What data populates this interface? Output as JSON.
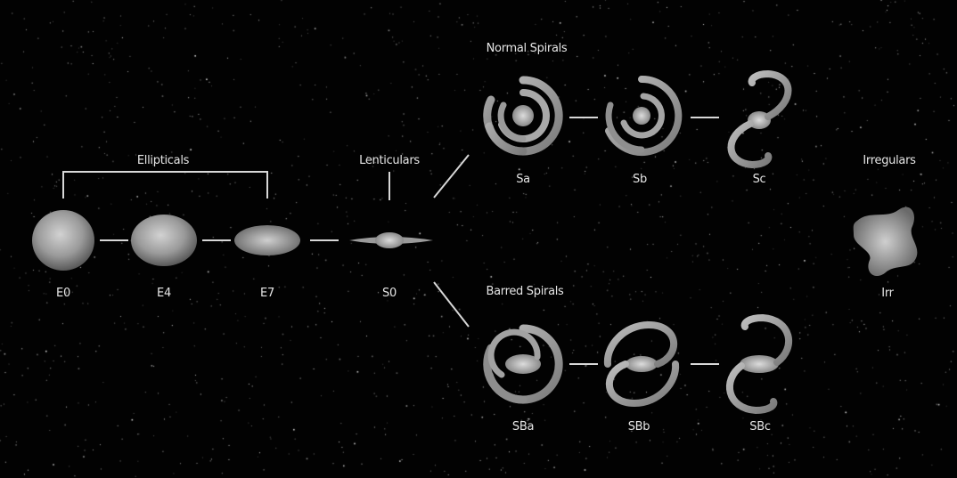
{
  "headings": {
    "ellipticals": "Ellipticals",
    "lenticulars": "Lenticulars",
    "normal_spirals": "Normal Spirals",
    "barred_spirals": "Barred Spirals",
    "irregulars": "Irregulars"
  },
  "galaxies": {
    "e0": "E0",
    "e4": "E4",
    "e7": "E7",
    "s0": "S0",
    "sa": "Sa",
    "sb": "Sb",
    "sc": "Sc",
    "sba": "SBa",
    "sbb": "SBb",
    "sbc": "SBc",
    "irr": "Irr"
  },
  "colors": {
    "background": "#020202",
    "line": "#d8d8d8",
    "galaxy_light": "#c8c8c8",
    "galaxy_dark": "#555555",
    "text": "#e6e6e6"
  }
}
